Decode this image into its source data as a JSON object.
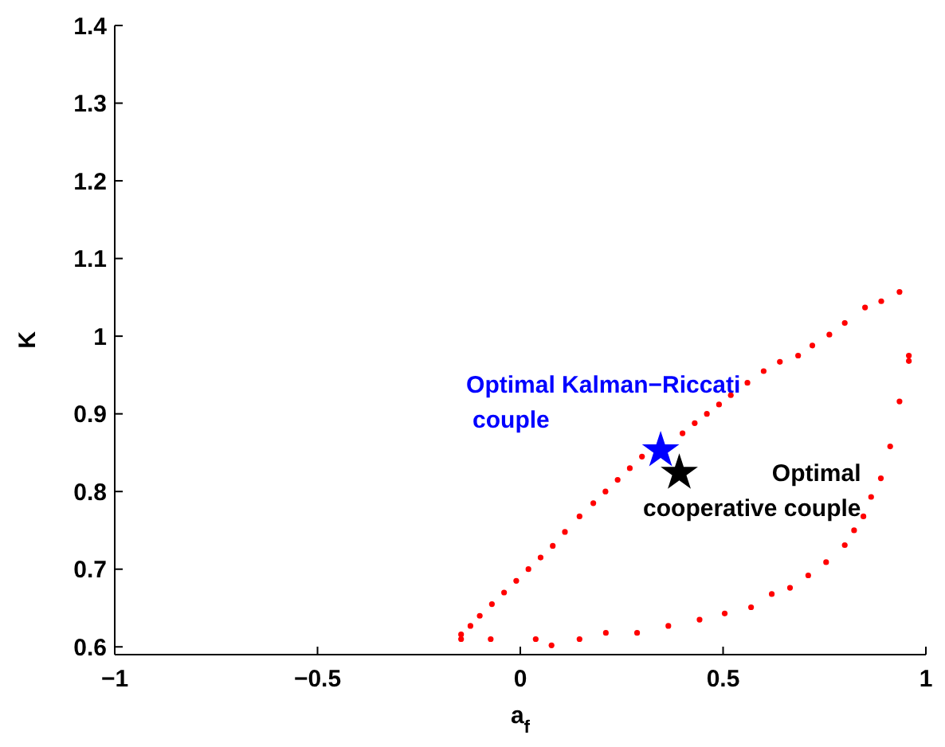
{
  "chart_data": {
    "type": "scatter",
    "xlabel": "a$_{f}$",
    "ylabel": "K",
    "xlim": [
      -1,
      1
    ],
    "ylim": [
      0.59,
      1.4
    ],
    "xticks": [
      {
        "value": -1,
        "label": "−1"
      },
      {
        "value": -0.5,
        "label": "−0.5"
      },
      0,
      0.5,
      1
    ],
    "yticks": [
      0.6,
      0.7,
      0.8,
      0.9,
      1,
      1.1,
      1.2,
      1.3,
      1.4
    ],
    "grid": false,
    "series": [
      {
        "color": "#ff0000",
        "marker": "circle",
        "x": [
          -0.146,
          -0.123,
          -0.1,
          -0.07,
          -0.04,
          -0.01,
          0.02,
          0.05,
          0.08,
          0.11,
          0.146,
          0.18,
          0.21,
          0.24,
          0.27,
          0.3,
          0.4,
          0.43,
          0.46,
          0.49,
          0.519,
          0.56,
          0.6,
          0.64,
          0.685,
          0.72,
          0.762,
          0.8,
          0.85,
          0.89,
          0.935,
          0.958,
          0.958,
          0.935,
          0.912,
          0.889,
          0.865,
          0.846,
          0.823,
          0.8,
          0.754,
          0.71,
          0.665,
          0.62,
          0.569,
          0.504,
          0.442,
          0.365,
          0.288,
          0.211,
          0.146,
          0.077,
          0.038,
          -0.073,
          -0.146
        ],
        "values": [
          0.616,
          0.627,
          0.64,
          0.655,
          0.67,
          0.685,
          0.7,
          0.715,
          0.73,
          0.748,
          0.768,
          0.785,
          0.8,
          0.815,
          0.83,
          0.845,
          0.875,
          0.888,
          0.9,
          0.912,
          0.924,
          0.94,
          0.955,
          0.967,
          0.975,
          0.988,
          1.002,
          1.017,
          1.037,
          1.045,
          1.057,
          0.975,
          0.968,
          0.916,
          0.858,
          0.817,
          0.793,
          0.768,
          0.75,
          0.731,
          0.709,
          0.692,
          0.676,
          0.668,
          0.651,
          0.643,
          0.635,
          0.627,
          0.618,
          0.618,
          0.61,
          0.602,
          0.61,
          0.61,
          0.61
        ]
      },
      {
        "name": "Optimal Kalman−Riccati couple",
        "color": "#0000ff",
        "marker": "star",
        "x": [
          0.346
        ],
        "values": [
          0.853
        ]
      },
      {
        "name": "Optimal cooperative couple",
        "color": "#000000",
        "marker": "star",
        "x": [
          0.392
        ],
        "values": [
          0.824
        ]
      }
    ]
  }
}
